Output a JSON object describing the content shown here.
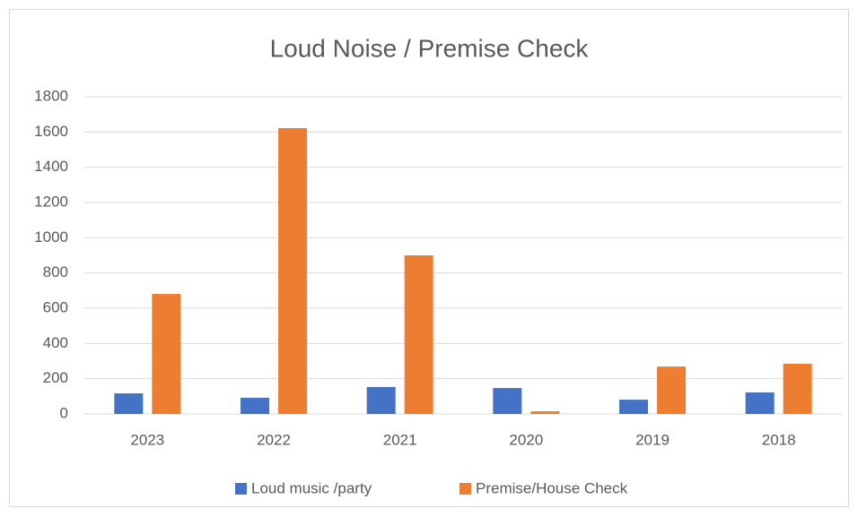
{
  "chart_data": {
    "type": "bar",
    "title": "Loud Noise / Premise Check",
    "categories": [
      "2023",
      "2022",
      "2021",
      "2020",
      "2019",
      "2018"
    ],
    "series": [
      {
        "name": "Loud music /party",
        "color": "#4472c4",
        "values": [
          117,
          92,
          153,
          147,
          81,
          122
        ]
      },
      {
        "name": "Premise/House Check",
        "color": "#ed7d31",
        "values": [
          681,
          1622,
          900,
          15,
          269,
          285
        ]
      }
    ],
    "ylim": [
      0,
      1800
    ],
    "yticks": [
      0,
      200,
      400,
      600,
      800,
      1000,
      1200,
      1400,
      1600,
      1800
    ],
    "grid": true,
    "legend": "bottom"
  }
}
